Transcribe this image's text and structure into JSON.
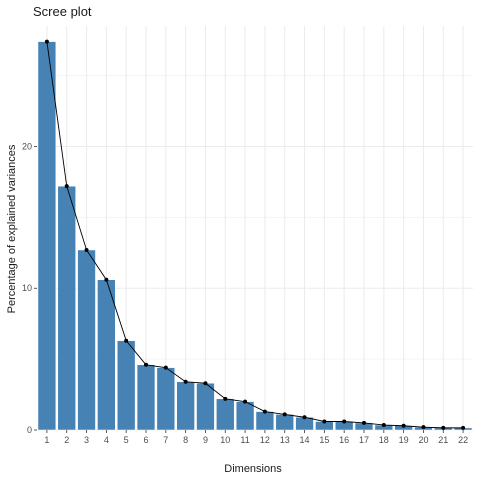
{
  "chart_data": {
    "type": "bar",
    "title": "Scree plot",
    "xlabel": "Dimensions",
    "ylabel": "Percentage of explained variances",
    "categories": [
      "1",
      "2",
      "3",
      "4",
      "5",
      "6",
      "7",
      "8",
      "9",
      "10",
      "11",
      "12",
      "13",
      "14",
      "15",
      "16",
      "17",
      "18",
      "19",
      "20",
      "21",
      "22"
    ],
    "values": [
      27.4,
      17.2,
      12.7,
      10.6,
      6.3,
      4.6,
      4.4,
      3.4,
      3.3,
      2.2,
      2.0,
      1.3,
      1.1,
      0.9,
      0.6,
      0.6,
      0.5,
      0.35,
      0.3,
      0.2,
      0.15,
      0.15
    ],
    "yticks": [
      0,
      10,
      20
    ],
    "ylim": [
      0,
      28.5
    ],
    "grid": true,
    "line_overlay": true,
    "bar_color": "#4682B4",
    "line_color": "#000000",
    "grid_color": "#EBEBEB"
  }
}
